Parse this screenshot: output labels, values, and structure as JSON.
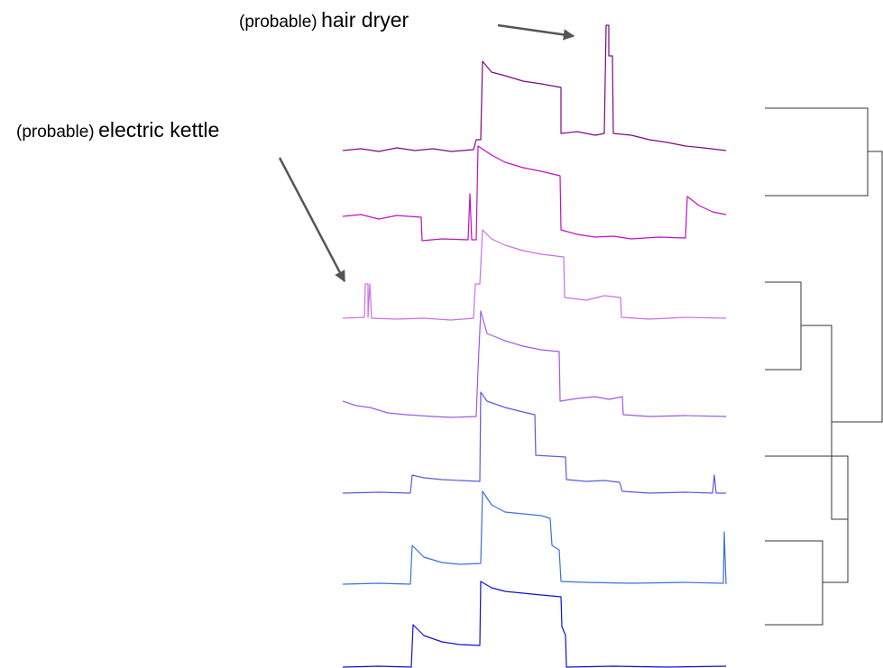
{
  "annotations": [
    {
      "prefix": "(probable)",
      "label": "hair dryer"
    },
    {
      "prefix": "(probable)",
      "label": "electric kettle"
    }
  ]
}
